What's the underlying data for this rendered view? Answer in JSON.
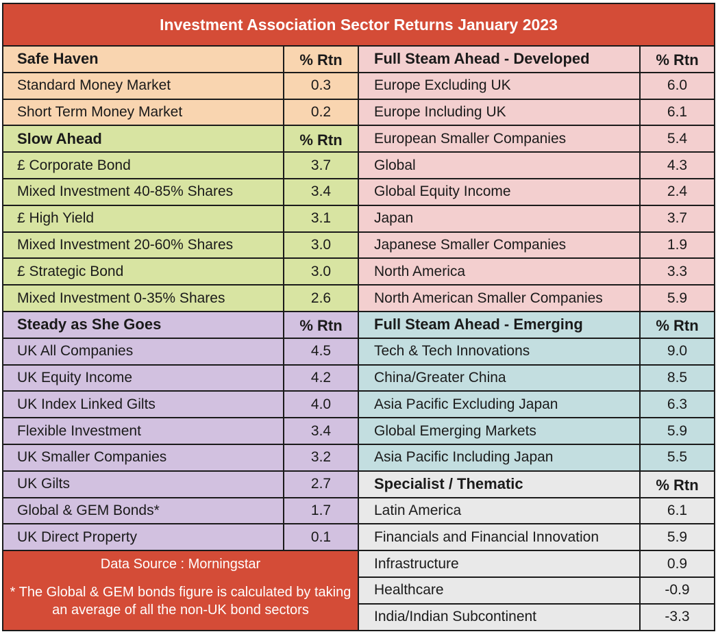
{
  "title": "Investment Association Sector Returns January 2023",
  "safe_haven": {
    "heading": "Safe Haven",
    "col_label": "% Rtn",
    "rows": [
      {
        "name": "Standard Money Market",
        "value": "0.3"
      },
      {
        "name": "Short Term Money Market",
        "value": "0.2"
      }
    ]
  },
  "slow_ahead": {
    "heading": "Slow Ahead",
    "col_label": "% Rtn",
    "rows": [
      {
        "name": "£ Corporate Bond",
        "value": "3.7"
      },
      {
        "name": "Mixed Investment 40-85% Shares",
        "value": "3.4"
      },
      {
        "name": "£ High Yield",
        "value": "3.1"
      },
      {
        "name": "Mixed Investment 20-60% Shares",
        "value": "3.0"
      },
      {
        "name": "£ Strategic Bond",
        "value": "3.0"
      },
      {
        "name": "Mixed Investment 0-35% Shares",
        "value": "2.6"
      }
    ]
  },
  "steady": {
    "heading": "Steady as She Goes",
    "col_label": "% Rtn",
    "rows": [
      {
        "name": "UK All Companies",
        "value": "4.5"
      },
      {
        "name": "UK Equity Income",
        "value": "4.2"
      },
      {
        "name": "UK Index Linked Gilts",
        "value": "4.0"
      },
      {
        "name": "Flexible Investment",
        "value": "3.4"
      },
      {
        "name": "UK Smaller Companies",
        "value": "3.2"
      },
      {
        "name": "UK Gilts",
        "value": "2.7"
      },
      {
        "name": "Global & GEM Bonds*",
        "value": "1.7"
      },
      {
        "name": "UK Direct Property",
        "value": "0.1"
      }
    ]
  },
  "developed": {
    "heading": "Full Steam Ahead - Developed",
    "col_label": "% Rtn",
    "rows": [
      {
        "name": "Europe Excluding UK",
        "value": "6.0"
      },
      {
        "name": "Europe Including UK",
        "value": "6.1"
      },
      {
        "name": "European Smaller Companies",
        "value": "5.4"
      },
      {
        "name": "Global",
        "value": "4.3"
      },
      {
        "name": "Global Equity Income",
        "value": "2.4"
      },
      {
        "name": "Japan",
        "value": "3.7"
      },
      {
        "name": "Japanese Smaller Companies",
        "value": "1.9"
      },
      {
        "name": "North America",
        "value": "3.3"
      },
      {
        "name": "North American Smaller Companies",
        "value": "5.9"
      }
    ]
  },
  "emerging": {
    "heading": "Full Steam Ahead - Emerging",
    "col_label": "% Rtn",
    "rows": [
      {
        "name": "Tech & Tech Innovations",
        "value": "9.0"
      },
      {
        "name": "China/Greater China",
        "value": "8.5"
      },
      {
        "name": "Asia Pacific Excluding Japan",
        "value": "6.3"
      },
      {
        "name": "Global Emerging Markets",
        "value": "5.9"
      },
      {
        "name": "Asia Pacific Including Japan",
        "value": "5.5"
      }
    ]
  },
  "specialist": {
    "heading": "Specialist / Thematic",
    "col_label": "% Rtn",
    "rows": [
      {
        "name": "Latin America",
        "value": "6.1"
      },
      {
        "name": "Financials and Financial Innovation",
        "value": "5.9"
      },
      {
        "name": "Infrastructure",
        "value": "0.9"
      },
      {
        "name": "Healthcare",
        "value": "-0.9"
      },
      {
        "name": "India/Indian Subcontinent",
        "value": "-3.3"
      }
    ]
  },
  "note": {
    "source": "Data Source : Morningstar",
    "footnote": "* The Global & GEM bonds figure is calculated by taking an average of all the non-UK bond sectors"
  },
  "colors": {
    "title_bg": "#d44c37",
    "safe_haven": "#f9d5b0",
    "slow_ahead": "#d8e4a2",
    "steady": "#d2c1e0",
    "developed": "#f3cfcf",
    "emerging": "#c3dee0",
    "specialist": "#e9e9e9"
  }
}
